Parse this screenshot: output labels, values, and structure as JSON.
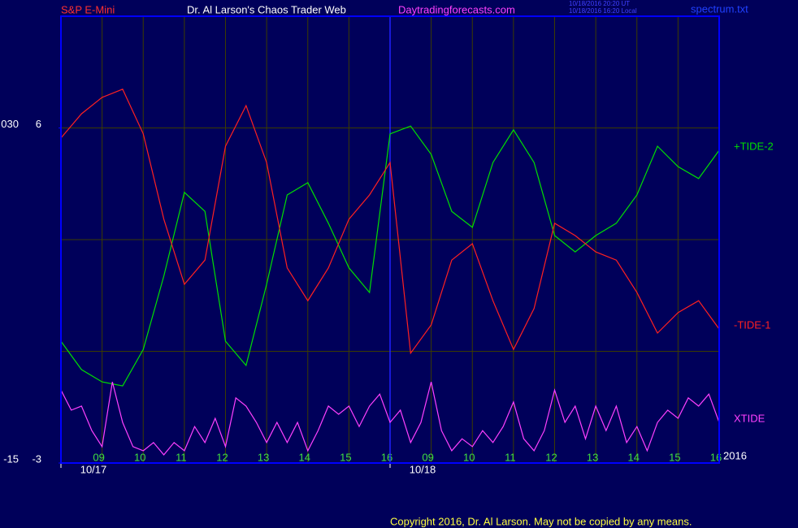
{
  "chart_data": {
    "type": "line",
    "header": {
      "instrument": "S&P E-Mini",
      "site_title": "Dr. Al Larson's Chaos Trader Web",
      "site_url": "Daytradingforecasts.com",
      "time_ut": "10/18/2016 20:20 UT",
      "time_local": "10/18/2016 16:20 Local",
      "file": "spectrum.txt"
    },
    "copyright": "Copyright 2016, Dr. Al Larson. May not be copied by any means.",
    "date_labels": [
      "10/17",
      "10/18"
    ],
    "year_label": "2016",
    "xlim": [
      0,
      16
    ],
    "xticks": [
      {
        "value": 1,
        "label": "09"
      },
      {
        "value": 2,
        "label": "10"
      },
      {
        "value": 3,
        "label": "11"
      },
      {
        "value": 4,
        "label": "12"
      },
      {
        "value": 5,
        "label": "13"
      },
      {
        "value": 6,
        "label": "14"
      },
      {
        "value": 7,
        "label": "15"
      },
      {
        "value": 8,
        "label": "16"
      },
      {
        "value": 9,
        "label": "09"
      },
      {
        "value": 10,
        "label": "10"
      },
      {
        "value": 11,
        "label": "11"
      },
      {
        "value": 12,
        "label": "12"
      },
      {
        "value": 13,
        "label": "13"
      },
      {
        "value": 14,
        "label": "14"
      },
      {
        "value": 15,
        "label": "15"
      },
      {
        "value": 16,
        "label": "16"
      }
    ],
    "session_break": 8,
    "ylim": [
      -3,
      9
    ],
    "yticks": [
      -3,
      6
    ],
    "ygrid": [
      0,
      3
    ],
    "y2lim": [
      -15,
      45
    ],
    "y2ticks": [
      -15,
      {
        "value": 30,
        "label": "030"
      }
    ],
    "x": [
      0,
      0.5,
      1,
      1.5,
      2,
      2.5,
      3,
      3.5,
      4,
      4.5,
      5,
      5.5,
      6,
      6.5,
      7,
      7.5,
      8,
      8.5,
      9,
      9.5,
      10,
      10.5,
      11,
      11.5,
      12,
      12.5,
      13,
      13.5,
      14,
      14.5,
      15,
      15.5,
      16
    ],
    "series": [
      {
        "name": "+TIDE-2",
        "color": "#00e000",
        "values": [
          0.27,
          -0.49,
          -0.82,
          -0.93,
          0.05,
          2.02,
          4.27,
          3.76,
          0.27,
          -0.38,
          1.8,
          4.2,
          4.53,
          3.44,
          2.24,
          1.58,
          5.84,
          6.05,
          5.29,
          3.76,
          3.33,
          5.07,
          5.95,
          5.07,
          3.11,
          2.67,
          3.11,
          3.44,
          4.2,
          5.51,
          4.96,
          4.64,
          5.4
        ]
      },
      {
        "name": "-TIDE-1",
        "color": "#ff2020",
        "values": [
          5.73,
          6.38,
          6.82,
          7.04,
          5.84,
          3.55,
          1.8,
          2.45,
          5.51,
          6.6,
          5.07,
          2.24,
          1.36,
          2.24,
          3.55,
          4.2,
          5.07,
          -0.05,
          0.71,
          2.45,
          2.89,
          1.36,
          0.05,
          1.15,
          3.44,
          3.11,
          2.67,
          2.45,
          1.58,
          0.49,
          1.04,
          1.36,
          0.6
        ]
      },
      {
        "name": "XTIDE",
        "color": "#ff40ff",
        "x": [
          0,
          0.25,
          0.5,
          0.75,
          1,
          1.25,
          1.5,
          1.75,
          2,
          2.25,
          2.5,
          2.75,
          3,
          3.25,
          3.5,
          3.75,
          4,
          4.25,
          4.5,
          4.75,
          5,
          5.25,
          5.5,
          5.75,
          6,
          6.25,
          6.5,
          6.75,
          7,
          7.25,
          7.5,
          7.75,
          8,
          8.25,
          8.5,
          8.75,
          9,
          9.25,
          9.5,
          9.75,
          10,
          10.25,
          10.5,
          10.75,
          11,
          11.25,
          11.5,
          11.75,
          12,
          12.25,
          12.5,
          12.75,
          13,
          13.25,
          13.5,
          13.75,
          14,
          14.25,
          14.5,
          14.75,
          15,
          15.25,
          15.5,
          15.75,
          16
        ],
        "values": [
          -1.04,
          -1.58,
          -1.47,
          -2.13,
          -2.56,
          -0.82,
          -1.91,
          -2.56,
          -2.67,
          -2.45,
          -2.78,
          -2.45,
          -2.67,
          -2.02,
          -2.45,
          -1.8,
          -2.56,
          -1.25,
          -1.47,
          -1.91,
          -2.45,
          -1.91,
          -2.45,
          -1.91,
          -2.67,
          -2.13,
          -1.47,
          -1.69,
          -1.47,
          -2.02,
          -1.47,
          -1.15,
          -1.91,
          -1.58,
          -2.45,
          -1.91,
          -0.82,
          -2.13,
          -2.67,
          -2.35,
          -2.56,
          -2.13,
          -2.45,
          -2.02,
          -1.36,
          -2.35,
          -2.67,
          -2.13,
          -1.04,
          -1.91,
          -1.47,
          -2.35,
          -1.47,
          -2.13,
          -1.47,
          -2.45,
          -2.02,
          -2.67,
          -1.91,
          -1.58,
          -1.8,
          -1.25,
          -1.47,
          -1.15,
          -1.91
        ]
      }
    ]
  }
}
